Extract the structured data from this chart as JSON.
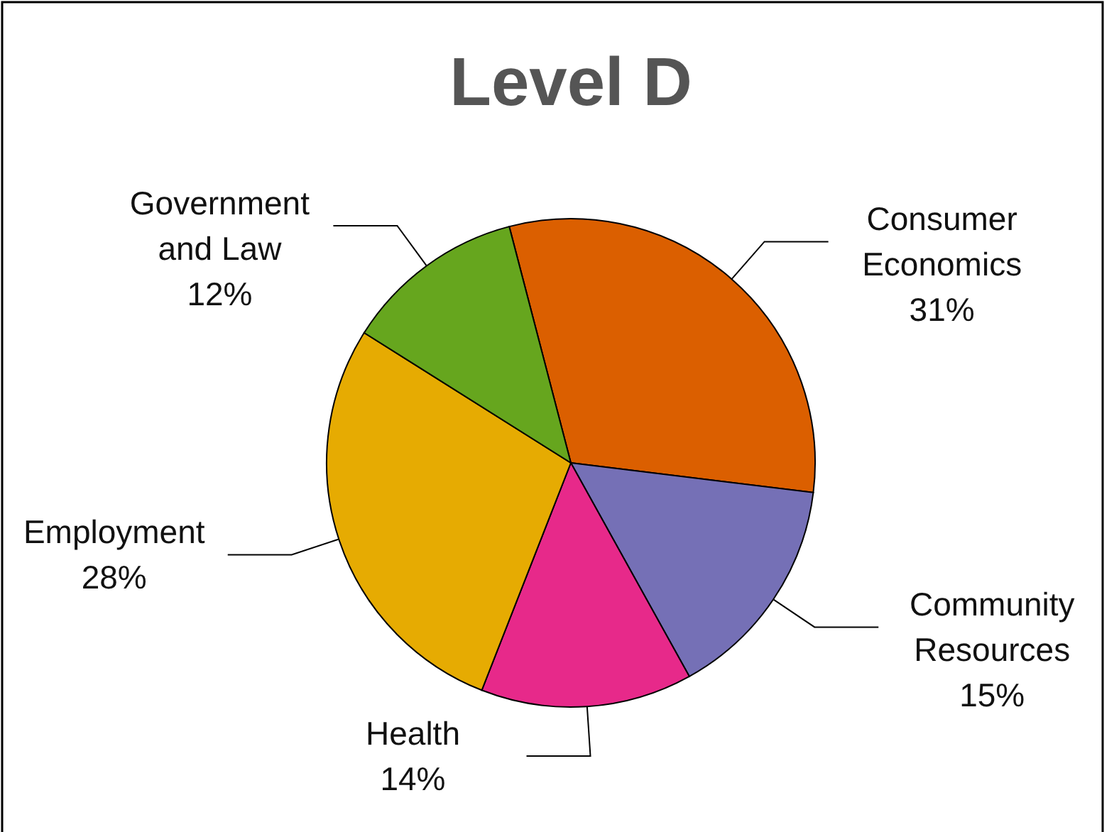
{
  "chart_data": {
    "type": "pie",
    "title": "Level D",
    "categories": [
      "Consumer Economics",
      "Community Resources",
      "Health",
      "Employment",
      "Government and Law"
    ],
    "values": [
      31,
      15,
      14,
      28,
      12
    ],
    "value_labels": [
      "31%",
      "15%",
      "14%",
      "28%",
      "12%"
    ],
    "colors": [
      "#db5f00",
      "#7570b6",
      "#e7298a",
      "#e6ab02",
      "#66a61e"
    ]
  }
}
